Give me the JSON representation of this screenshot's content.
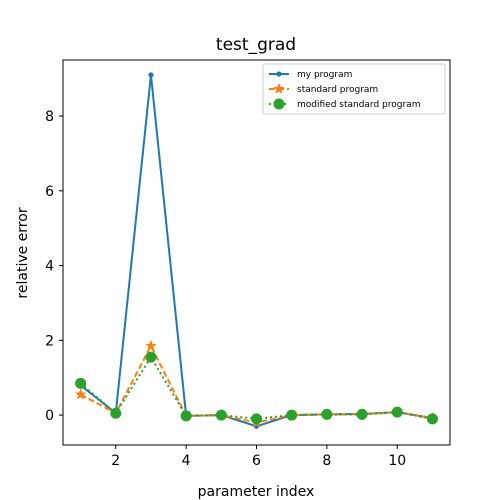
{
  "chart_data": {
    "type": "line",
    "title": "test_grad",
    "xlabel": "parameter index",
    "ylabel": "relative error",
    "xlim": [
      0.5,
      11.5
    ],
    "ylim": [
      -0.8,
      9.5
    ],
    "xticks": [
      2,
      4,
      6,
      8,
      10
    ],
    "yticks": [
      0,
      2,
      4,
      6,
      8
    ],
    "grid": false,
    "legend_position": "top-right",
    "x": [
      1,
      2,
      3,
      4,
      5,
      6,
      7,
      8,
      9,
      10,
      11
    ],
    "series": [
      {
        "name": "my program",
        "values": [
          0.8,
          0.05,
          9.1,
          -0.02,
          0.0,
          -0.3,
          0.0,
          0.02,
          0.03,
          0.08,
          -0.08
        ],
        "color": "#1f77b4",
        "linestyle": "solid",
        "marker": "point"
      },
      {
        "name": "standard program",
        "values": [
          0.55,
          0.05,
          1.85,
          -0.02,
          0.0,
          -0.2,
          0.0,
          0.02,
          0.02,
          0.08,
          -0.08
        ],
        "color": "#ff7f0e",
        "linestyle": "dashed",
        "marker": "star"
      },
      {
        "name": "modified standard program",
        "values": [
          0.85,
          0.05,
          1.55,
          -0.02,
          0.0,
          -0.1,
          0.0,
          0.02,
          0.02,
          0.08,
          -0.1
        ],
        "color": "#2ca02c",
        "linestyle": "dotted",
        "marker": "circle"
      }
    ]
  }
}
